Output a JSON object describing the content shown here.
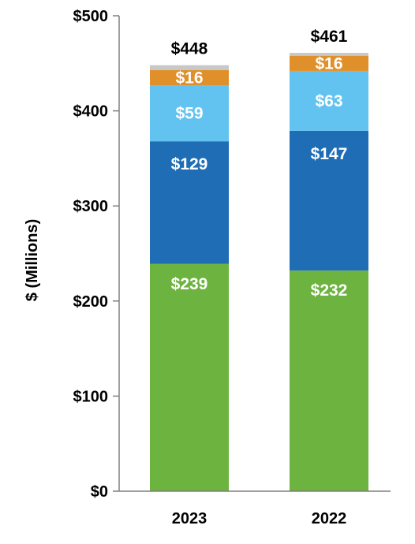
{
  "chart_data": {
    "type": "bar",
    "stacked": true,
    "categories": [
      "2023",
      "2022"
    ],
    "totals": [
      "$448",
      "$461"
    ],
    "series": [
      {
        "values": [
          239,
          232
        ],
        "labels": [
          "$239",
          "$232"
        ],
        "color": "#6db33f"
      },
      {
        "values": [
          129,
          147
        ],
        "labels": [
          "$129",
          "$147"
        ],
        "color": "#1f6db5"
      },
      {
        "values": [
          59,
          63
        ],
        "labels": [
          "$59",
          "$63"
        ],
        "color": "#62c3f0"
      },
      {
        "values": [
          16,
          16
        ],
        "labels": [
          "$16",
          "$16"
        ],
        "color": "#e0902b"
      },
      {
        "values": [
          5,
          3
        ],
        "labels": [
          "",
          ""
        ],
        "color": "#c8c8c8"
      }
    ],
    "ylabel": "$ (Millions)",
    "ylim": [
      0,
      500
    ],
    "yticks": [
      {
        "value": 0,
        "label": "$0"
      },
      {
        "value": 100,
        "label": "$100"
      },
      {
        "value": 200,
        "label": "$200"
      },
      {
        "value": 300,
        "label": "$300"
      },
      {
        "value": 400,
        "label": "$400"
      },
      {
        "value": 500,
        "label": "$500"
      }
    ],
    "grid": false,
    "legend": "none"
  }
}
